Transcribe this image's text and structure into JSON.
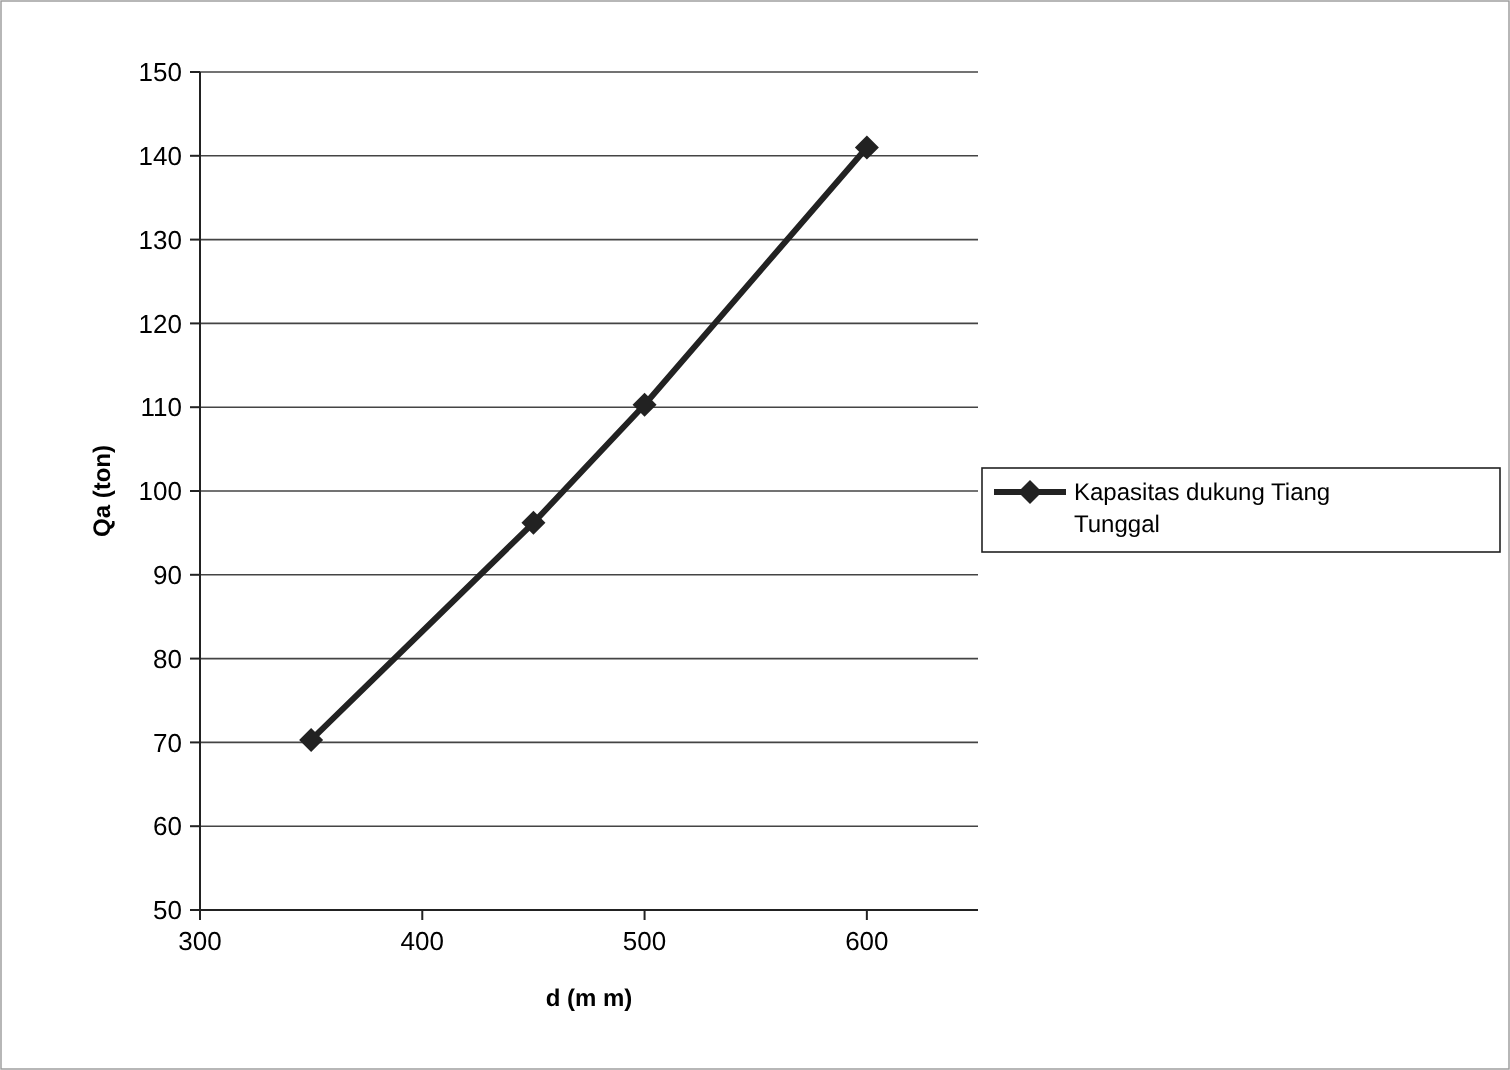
{
  "chart_data": {
    "type": "line",
    "xlabel": "d (m m)",
    "ylabel": "Qa (ton)",
    "x": [
      350,
      450,
      500,
      600
    ],
    "series": [
      {
        "name": "Kapasitas dukung Tiang Tunggal",
        "color": "#222222",
        "values": [
          70.3,
          96.2,
          110.3,
          141
        ]
      }
    ],
    "xlim": [
      300,
      650
    ],
    "xticks": [
      300,
      400,
      500,
      600
    ],
    "ylim": [
      50,
      150
    ],
    "yticks": [
      50,
      60,
      70,
      80,
      90,
      100,
      110,
      120,
      130,
      140,
      150
    ],
    "grid": "y",
    "legend": "right",
    "marker": "diamond",
    "line_style": "solid"
  }
}
